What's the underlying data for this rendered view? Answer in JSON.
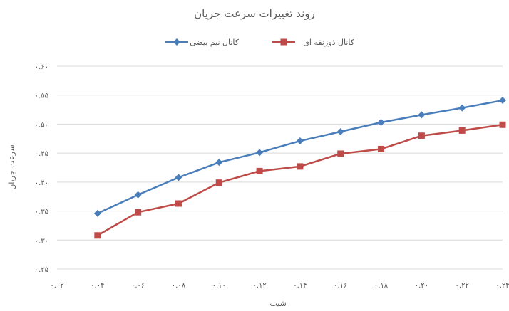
{
  "chart_data": {
    "type": "line",
    "title": "روند تغییرات سرعت جریان",
    "xlabel": "شیب",
    "ylabel": "سرعت جریان",
    "x": [
      0.04,
      0.06,
      0.08,
      0.1,
      0.12,
      0.14,
      0.16,
      0.18,
      0.2,
      0.22,
      0.24
    ],
    "xlim": [
      0.02,
      0.24
    ],
    "ylim": [
      0.25,
      0.6
    ],
    "x_ticks": [
      "۰.۰۲",
      "۰.۰۴",
      "۰.۰۶",
      "۰.۰۸",
      "۰.۱۰",
      "۰.۱۲",
      "۰.۱۴",
      "۰.۱۶",
      "۰.۱۸",
      "۰.۲۰",
      "۰.۲۲",
      "۰.۲۴"
    ],
    "y_ticks": [
      "۰.۲۵",
      "۰.۳۰",
      "۰.۳۵",
      "۰.۴۰",
      "۰.۴۵",
      "۰.۵۰",
      "۰.۵۵",
      "۰.۶۰"
    ],
    "grid": true,
    "legend_position": "top",
    "series": [
      {
        "name": "کانال نیم بیضی",
        "color": "#4a7ebb",
        "marker": "diamond",
        "values": [
          0.346,
          0.378,
          0.408,
          0.434,
          0.451,
          0.471,
          0.487,
          0.503,
          0.516,
          0.528,
          0.541
        ]
      },
      {
        "name": "کانال ذوزنقه ای",
        "color": "#be4b48",
        "marker": "square",
        "values": [
          0.308,
          0.348,
          0.363,
          0.399,
          0.419,
          0.427,
          0.449,
          0.457,
          0.48,
          0.489,
          0.499
        ]
      }
    ]
  }
}
